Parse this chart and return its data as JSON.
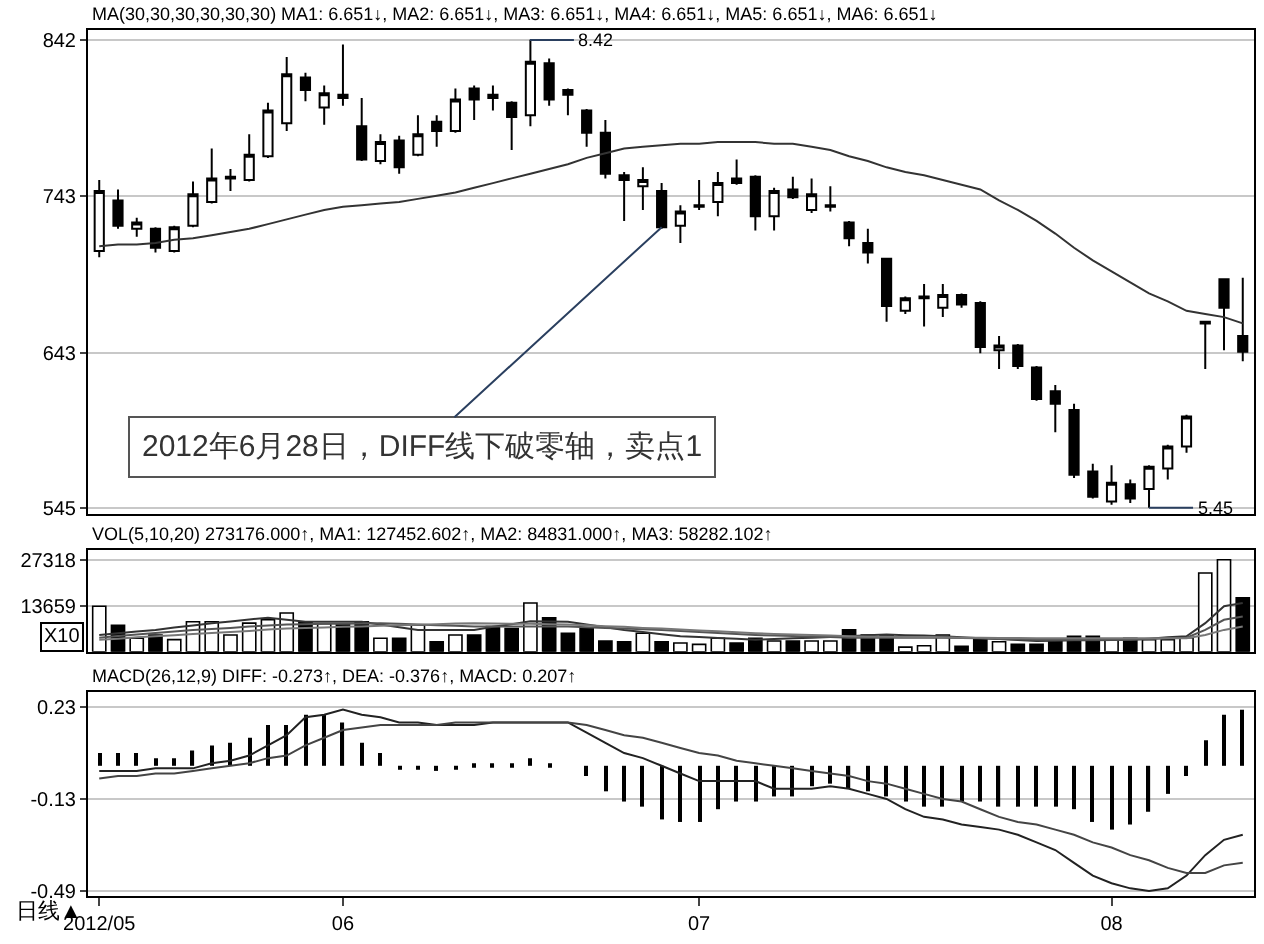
{
  "chart_data": [
    {
      "type": "candlestick",
      "title": "MA(30,30,30,30,30,30) MA1: 6.651↓, MA2: 6.651↓, MA3: 6.651↓, MA4: 6.651↓, MA5: 6.651↓, MA6: 6.651↓",
      "categories": [
        null,
        null,
        null,
        null,
        null,
        null,
        null,
        null,
        null,
        null,
        null,
        null,
        null,
        null,
        null,
        null,
        null,
        null,
        null,
        null,
        null,
        null,
        null,
        null,
        null,
        null,
        null,
        null,
        null,
        null,
        null,
        null,
        null,
        null,
        null,
        null,
        null,
        null,
        null,
        null,
        null,
        null,
        null,
        null,
        null,
        null,
        null,
        null,
        null,
        null,
        null,
        null,
        null,
        null,
        null,
        null,
        null,
        null,
        null,
        null,
        null,
        null
      ],
      "ohlc": [
        [
          708,
          753,
          704,
          746
        ],
        [
          740,
          747,
          722,
          724
        ],
        [
          722,
          729,
          717,
          726
        ],
        [
          722,
          723,
          707,
          710
        ],
        [
          708,
          724,
          707,
          723
        ],
        [
          724,
          752,
          723,
          744
        ],
        [
          739,
          773,
          738,
          754
        ],
        [
          754,
          760,
          746,
          755
        ],
        [
          753,
          782,
          752,
          769
        ],
        [
          768,
          802,
          767,
          797
        ],
        [
          789,
          831,
          784,
          820
        ],
        [
          818,
          821,
          803,
          810
        ],
        [
          799,
          813,
          788,
          808
        ],
        [
          807,
          839,
          800,
          805
        ],
        [
          787,
          805,
          765,
          766
        ],
        [
          765,
          782,
          763,
          777
        ],
        [
          778,
          781,
          757,
          761
        ],
        [
          769,
          794,
          768,
          782
        ],
        [
          790,
          794,
          774,
          784
        ],
        [
          784,
          811,
          783,
          804
        ],
        [
          811,
          813,
          791,
          804
        ],
        [
          807,
          813,
          797,
          805
        ],
        [
          802,
          803,
          772,
          793
        ],
        [
          794,
          842,
          787,
          828
        ],
        [
          827,
          830,
          800,
          804
        ],
        [
          810,
          811,
          794,
          807
        ],
        [
          797,
          798,
          774,
          783
        ],
        [
          783,
          791,
          754,
          757
        ],
        [
          756,
          758,
          727,
          753
        ],
        [
          749,
          761,
          734,
          753
        ],
        [
          746,
          751,
          722,
          723
        ],
        [
          724,
          737,
          713,
          733
        ],
        [
          736,
          753,
          734,
          737
        ],
        [
          739,
          758,
          730,
          751
        ],
        [
          754,
          766,
          750,
          751
        ],
        [
          755,
          756,
          721,
          730
        ],
        [
          730,
          748,
          721,
          746
        ],
        [
          747,
          755,
          741,
          742
        ],
        [
          734,
          754,
          732,
          744
        ],
        [
          736,
          749,
          733,
          737
        ],
        [
          726,
          727,
          711,
          716
        ],
        [
          713,
          722,
          700,
          707
        ],
        [
          703,
          703,
          663,
          673
        ],
        [
          670,
          679,
          668,
          678
        ],
        [
          678,
          687,
          660,
          679
        ],
        [
          672,
          687,
          666,
          680
        ],
        [
          680,
          681,
          672,
          674
        ],
        [
          675,
          676,
          643,
          647
        ],
        [
          645,
          654,
          633,
          648
        ],
        [
          648,
          649,
          633,
          635
        ],
        [
          634,
          635,
          613,
          614
        ],
        [
          619,
          623,
          593,
          611
        ],
        [
          607,
          611,
          564,
          566
        ],
        [
          568,
          573,
          551,
          552
        ],
        [
          549,
          572,
          547,
          561
        ],
        [
          560,
          563,
          548,
          551
        ],
        [
          557,
          572,
          545,
          571
        ],
        [
          570,
          585,
          563,
          584
        ],
        [
          584,
          604,
          580,
          603
        ],
        [
          662,
          663,
          633,
          663
        ],
        [
          690,
          690,
          645,
          672
        ],
        [
          654,
          691,
          638,
          644
        ]
      ],
      "series": [
        {
          "type": "line",
          "color": "#333333",
          "values": [
            711,
            712,
            712,
            713,
            715,
            716,
            718,
            720,
            722,
            725,
            728,
            731,
            734,
            736,
            737,
            738,
            739,
            741,
            743,
            745,
            748,
            751,
            754,
            757,
            760,
            763,
            767,
            770,
            773,
            774,
            775,
            776,
            776,
            777,
            777,
            777,
            776,
            776,
            774,
            772,
            768,
            765,
            761,
            758,
            756,
            753,
            750,
            747,
            740,
            734,
            727,
            719,
            710,
            702,
            695,
            688,
            681,
            676,
            670,
            668,
            666,
            662
          ]
        }
      ],
      "ylim": [
        541,
        848
      ],
      "yticks": [
        545,
        643,
        743,
        842
      ],
      "grid": "y",
      "tick_labels": "y",
      "annotations": [
        "8.42",
        "5.45",
        "2012年6月28日，DIFF线下破零轴，卖点1"
      ]
    },
    {
      "type": "bar",
      "title": "VOL(5,10,20) 273176.000↑, MA1: 127452.602↑, MA2: 84831.000↑, MA3: 58282.102↑",
      "categories": [
        null,
        null,
        null,
        null,
        null,
        null,
        null,
        null,
        null,
        null,
        null,
        null,
        null,
        null,
        null,
        null,
        null,
        null,
        null,
        null,
        null,
        null,
        null,
        null,
        null,
        null,
        null,
        null,
        null,
        null,
        null,
        null,
        null,
        null,
        null,
        null,
        null,
        null,
        null,
        null,
        null,
        null,
        null,
        null,
        null,
        null,
        null,
        null,
        null,
        null,
        null,
        null,
        null,
        null,
        null,
        null,
        null,
        null,
        null,
        null,
        null,
        null
      ],
      "series": [
        {
          "type": "bar",
          "values": [
            13500,
            7900,
            4000,
            5000,
            3600,
            8900,
            8900,
            5000,
            8500,
            9500,
            11500,
            8900,
            8300,
            8300,
            8900,
            4000,
            4000,
            7900,
            3000,
            5000,
            5000,
            7500,
            6900,
            14500,
            10100,
            5500,
            6900,
            3200,
            3000,
            5500,
            3000,
            2600,
            2200,
            4000,
            2600,
            4000,
            3200,
            3200,
            3200,
            3200,
            6500,
            5000,
            5000,
            1400,
            1800,
            5000,
            1600,
            4000,
            3000,
            2200,
            2200,
            3200,
            4600,
            4600,
            3600,
            4000,
            3600,
            3600,
            4200,
            23400,
            27300,
            16000
          ],
          "colors": [
            "#ffffff",
            "#000000",
            "#ffffff",
            "#000000",
            "#ffffff",
            "#ffffff",
            "#ffffff",
            "#ffffff",
            "#ffffff",
            "#ffffff",
            "#ffffff",
            "#000000",
            "#ffffff",
            "#000000",
            "#000000",
            "#ffffff",
            "#000000",
            "#ffffff",
            "#000000",
            "#ffffff",
            "#000000",
            "#000000",
            "#000000",
            "#ffffff",
            "#000000",
            "#000000",
            "#000000",
            "#000000",
            "#000000",
            "#ffffff",
            "#000000",
            "#ffffff",
            "#ffffff",
            "#ffffff",
            "#000000",
            "#000000",
            "#ffffff",
            "#000000",
            "#ffffff",
            "#ffffff",
            "#000000",
            "#000000",
            "#000000",
            "#ffffff",
            "#ffffff",
            "#ffffff",
            "#000000",
            "#000000",
            "#ffffff",
            "#000000",
            "#000000",
            "#000000",
            "#000000",
            "#000000",
            "#ffffff",
            "#000000",
            "#ffffff",
            "#ffffff",
            "#ffffff",
            "#ffffff",
            "#ffffff",
            "#000000"
          ]
        },
        {
          "type": "line",
          "color": "#333333",
          "values": [
            5000,
            5500,
            6000,
            6500,
            7200,
            7800,
            8500,
            9000,
            9600,
            10100,
            9500,
            8900,
            8900,
            8900,
            8900,
            8100,
            7300,
            6500,
            6500,
            6500,
            6500,
            7400,
            8200,
            9100,
            9000,
            8900,
            8100,
            7300,
            6500,
            5900,
            5200,
            4600,
            4400,
            4100,
            3900,
            3600,
            3800,
            4000,
            4200,
            4400,
            4600,
            4900,
            5100,
            4900,
            4800,
            4600,
            4300,
            4000,
            3800,
            3500,
            3200,
            3300,
            3400,
            3400,
            3500,
            3600,
            3900,
            4300,
            4600,
            8500,
            13500,
            14500
          ]
        },
        {
          "type": "line",
          "color": "#555555",
          "values": [
            4200,
            4700,
            5100,
            5600,
            6000,
            6500,
            6800,
            7100,
            7500,
            7800,
            8100,
            8200,
            8300,
            8300,
            8400,
            8500,
            8300,
            8100,
            7900,
            7700,
            7500,
            7500,
            7500,
            7500,
            7500,
            7500,
            7300,
            7100,
            6900,
            6700,
            6500,
            6200,
            5900,
            5600,
            5300,
            5000,
            4800,
            4700,
            4500,
            4400,
            4200,
            4200,
            4200,
            4200,
            4200,
            4200,
            4100,
            4000,
            3800,
            3700,
            3600,
            3600,
            3600,
            3600,
            3600,
            3600,
            3800,
            4000,
            4200,
            6500,
            9500,
            10500
          ]
        },
        {
          "type": "line",
          "color": "#777777",
          "values": [
            3600,
            3900,
            4300,
            4600,
            4900,
            5300,
            5600,
            5900,
            6200,
            6600,
            6900,
            7100,
            7200,
            7400,
            7500,
            7700,
            7900,
            8000,
            8200,
            8400,
            8500,
            8400,
            8300,
            8300,
            8200,
            8100,
            7900,
            7600,
            7400,
            7100,
            6900,
            6600,
            6300,
            6100,
            5800,
            5500,
            5300,
            5100,
            5000,
            4800,
            4600,
            4500,
            4500,
            4400,
            4400,
            4300,
            4200,
            4200,
            4100,
            4100,
            4000,
            4000,
            4000,
            4000,
            4000,
            4000,
            4000,
            4000,
            4000,
            5000,
            6500,
            7500
          ]
        }
      ],
      "ylim": [
        0,
        30300
      ],
      "yticks": [
        13659,
        27318
      ],
      "grid": "y",
      "tick_labels": "y",
      "annotations": [
        "X10"
      ]
    },
    {
      "type": "bar",
      "title": "MACD(26,12,9) DIFF: -0.273↑, DEA: -0.376↑, MACD: 0.207↑",
      "categories": [
        "2012/05",
        null,
        null,
        null,
        null,
        null,
        null,
        null,
        null,
        null,
        null,
        null,
        null,
        "06",
        null,
        null,
        null,
        null,
        null,
        null,
        null,
        null,
        null,
        null,
        null,
        null,
        null,
        null,
        null,
        null,
        null,
        null,
        "07",
        null,
        null,
        null,
        null,
        null,
        null,
        null,
        null,
        null,
        null,
        null,
        null,
        null,
        null,
        null,
        null,
        null,
        null,
        null,
        null,
        null,
        "08",
        null,
        null,
        null,
        null,
        null,
        null,
        null
      ],
      "series": [
        {
          "type": "bar",
          "color": "#000000",
          "values": [
            0.05,
            0.05,
            0.05,
            0.03,
            0.03,
            0.06,
            0.08,
            0.09,
            0.11,
            0.16,
            0.16,
            0.2,
            0.2,
            0.17,
            0.09,
            0.05,
            -0.01,
            -0.01,
            -0.02,
            -0.01,
            0.01,
            0.01,
            0.01,
            0.03,
            0.01,
            0.0,
            -0.04,
            -0.1,
            -0.14,
            -0.16,
            -0.21,
            -0.22,
            -0.22,
            -0.17,
            -0.14,
            -0.14,
            -0.12,
            -0.12,
            -0.08,
            -0.07,
            -0.09,
            -0.1,
            -0.12,
            -0.14,
            -0.16,
            -0.16,
            -0.14,
            -0.14,
            -0.16,
            -0.16,
            -0.16,
            -0.16,
            -0.17,
            -0.22,
            -0.25,
            -0.23,
            -0.18,
            -0.11,
            -0.04,
            0.1,
            0.2,
            0.22
          ]
        },
        {
          "type": "line",
          "color": "#222222",
          "values": [
            -0.02,
            -0.02,
            -0.02,
            -0.01,
            -0.01,
            -0.01,
            0.01,
            0.02,
            0.04,
            0.08,
            0.12,
            0.19,
            0.2,
            0.22,
            0.2,
            0.19,
            0.17,
            0.17,
            0.16,
            0.16,
            0.16,
            0.17,
            0.17,
            0.17,
            0.17,
            0.17,
            0.13,
            0.09,
            0.05,
            0.03,
            0.0,
            -0.03,
            -0.06,
            -0.06,
            -0.06,
            -0.06,
            -0.09,
            -0.09,
            -0.09,
            -0.08,
            -0.09,
            -0.11,
            -0.13,
            -0.17,
            -0.2,
            -0.21,
            -0.23,
            -0.24,
            -0.25,
            -0.27,
            -0.3,
            -0.33,
            -0.38,
            -0.43,
            -0.46,
            -0.48,
            -0.49,
            -0.48,
            -0.43,
            -0.35,
            -0.29,
            -0.27
          ]
        },
        {
          "type": "line",
          "color": "#444444",
          "values": [
            -0.05,
            -0.04,
            -0.04,
            -0.03,
            -0.03,
            -0.02,
            -0.01,
            0.0,
            0.01,
            0.03,
            0.04,
            0.08,
            0.11,
            0.14,
            0.15,
            0.16,
            0.16,
            0.16,
            0.16,
            0.17,
            0.17,
            0.17,
            0.17,
            0.17,
            0.17,
            0.17,
            0.16,
            0.14,
            0.12,
            0.11,
            0.09,
            0.07,
            0.05,
            0.04,
            0.02,
            0.01,
            0.0,
            -0.01,
            -0.02,
            -0.03,
            -0.04,
            -0.06,
            -0.07,
            -0.09,
            -0.11,
            -0.13,
            -0.14,
            -0.17,
            -0.2,
            -0.22,
            -0.23,
            -0.25,
            -0.27,
            -0.3,
            -0.32,
            -0.35,
            -0.37,
            -0.4,
            -0.42,
            -0.42,
            -0.39,
            -0.38
          ]
        }
      ],
      "ylim": [
        -0.51,
        0.29
      ],
      "yticks": [
        -0.49,
        -0.13,
        0.23
      ],
      "grid": "y",
      "annotations": [
        "日线▲"
      ]
    }
  ]
}
